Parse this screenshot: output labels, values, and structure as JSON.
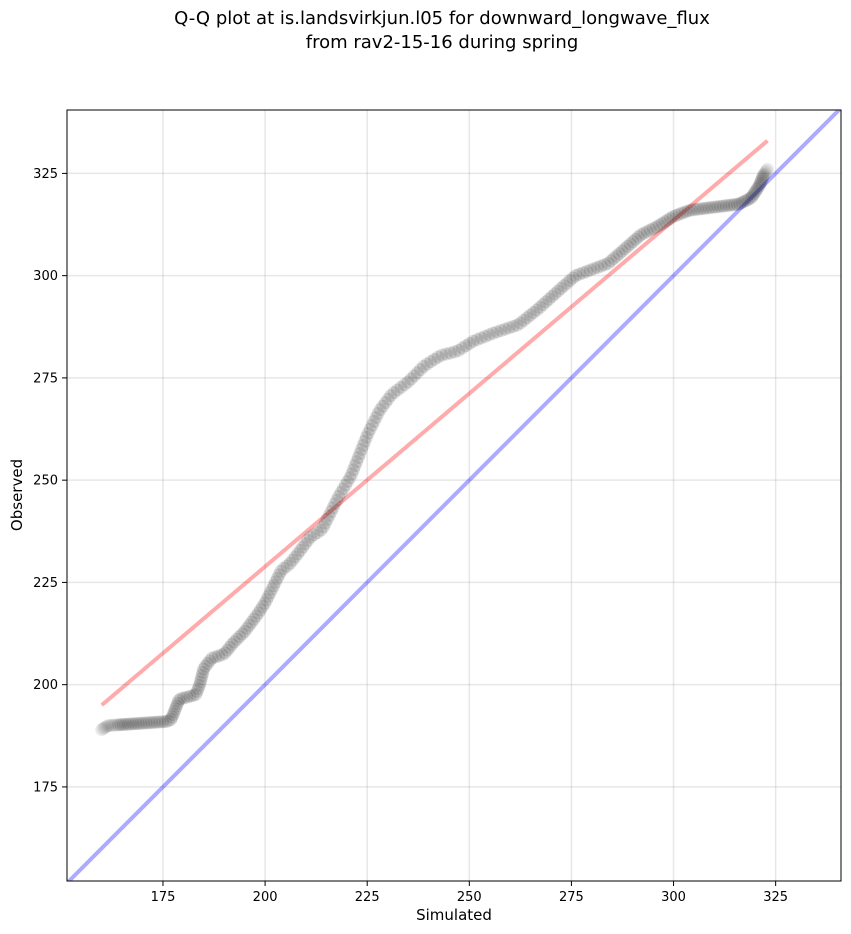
{
  "chart_data": {
    "type": "scatter",
    "title_lines": [
      "Q-Q plot at is.landsvirkjun.l05 for downward_longwave_flux",
      "from rav2-15-16 during spring"
    ],
    "xlabel": "Simulated",
    "ylabel": "Observed",
    "xlim": [
      151.5,
      341
    ],
    "ylim": [
      152,
      340.5
    ],
    "xticks": [
      175,
      200,
      225,
      250,
      275,
      300,
      325
    ],
    "yticks": [
      175,
      200,
      225,
      250,
      275,
      300,
      325
    ],
    "grid": true,
    "identity_line": {
      "name": "1:1 line",
      "color": "#0000ff",
      "opacity": 0.33
    },
    "fit_line": {
      "name": "linear fit",
      "x": [
        160,
        323
      ],
      "y": [
        195,
        333
      ],
      "color": "#ff0000",
      "opacity": 0.33
    },
    "point_color": "#000000",
    "anchors": [
      [
        160,
        189
      ],
      [
        161.5,
        190
      ],
      [
        176,
        191
      ],
      [
        177,
        191.5
      ],
      [
        178,
        194
      ],
      [
        179,
        196.5
      ],
      [
        183,
        197.5
      ],
      [
        184,
        200
      ],
      [
        185,
        204
      ],
      [
        187,
        206.5
      ],
      [
        190,
        207.5
      ],
      [
        192,
        210
      ],
      [
        195,
        213
      ],
      [
        198,
        217
      ],
      [
        200,
        220
      ],
      [
        202,
        224
      ],
      [
        204,
        228
      ],
      [
        206,
        229.5
      ],
      [
        208,
        232
      ],
      [
        211,
        236
      ],
      [
        214,
        238
      ],
      [
        216,
        242
      ],
      [
        218,
        246
      ],
      [
        221,
        251
      ],
      [
        223,
        256
      ],
      [
        225,
        261
      ],
      [
        228,
        267
      ],
      [
        231,
        271
      ],
      [
        235,
        274
      ],
      [
        239,
        278
      ],
      [
        243,
        280.5
      ],
      [
        247,
        281.5
      ],
      [
        251,
        284
      ],
      [
        256,
        286
      ],
      [
        262,
        288
      ],
      [
        267,
        292
      ],
      [
        272,
        296.5
      ],
      [
        276,
        300
      ],
      [
        280,
        301.5
      ],
      [
        284,
        303
      ],
      [
        288,
        306.5
      ],
      [
        292,
        310
      ],
      [
        296,
        312
      ],
      [
        300,
        314.5
      ],
      [
        304,
        316
      ],
      [
        308,
        316.5
      ],
      [
        312,
        317
      ],
      [
        316,
        317.5
      ],
      [
        319,
        319
      ],
      [
        321,
        322
      ],
      [
        322,
        324.5
      ],
      [
        323,
        326
      ]
    ],
    "n_points": 260
  }
}
